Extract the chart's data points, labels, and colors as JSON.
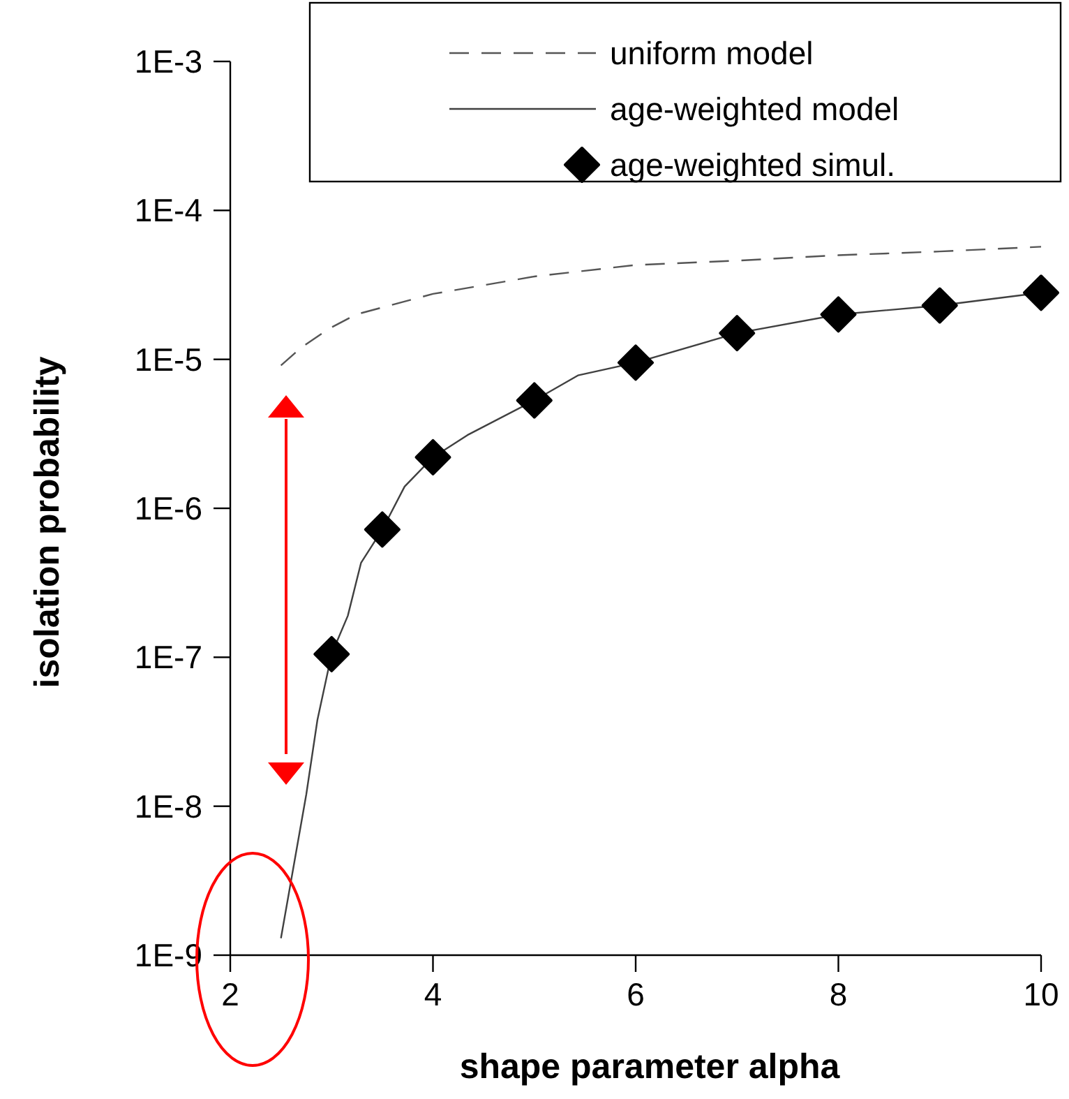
{
  "chart_data": {
    "type": "line",
    "xlabel": "shape parameter alpha",
    "ylabel": "isolation probability",
    "log": "y",
    "legend": "top right",
    "grid": false,
    "xlim": [
      2,
      10
    ],
    "xticks": [
      2,
      4,
      6,
      8,
      10
    ],
    "ylim": [
      1e-09,
      0.001
    ],
    "yticks": [
      {
        "value": 1e-09,
        "label": "1E-9"
      },
      {
        "value": 1e-08,
        "label": "1E-8"
      },
      {
        "value": 1e-07,
        "label": "1E-7"
      },
      {
        "value": 1e-06,
        "label": "1E-6"
      },
      {
        "value": 1e-05,
        "label": "1E-5"
      },
      {
        "value": 0.0001,
        "label": "1E-4"
      },
      {
        "value": 0.001,
        "label": "1E-3"
      }
    ],
    "series": [
      {
        "name": "uniform model",
        "line_style": "dashed",
        "marker": "none",
        "color": "#555555",
        "x": [
          2.5,
          2.7,
          2.97,
          3.24,
          4,
          5,
          6,
          7,
          8,
          9,
          10
        ],
        "values": [
          9.1e-06,
          1.2e-05,
          1.6e-05,
          2e-05,
          2.75e-05,
          3.6e-05,
          4.3e-05,
          4.6e-05,
          5e-05,
          5.3e-05,
          5.7e-05
        ]
      },
      {
        "name": "age-weighted model",
        "line_style": "solid",
        "marker": "none",
        "color": "#404040",
        "x": [
          2.5,
          2.75,
          2.86,
          3,
          3.16,
          3.29,
          3.5,
          3.72,
          4,
          4.34,
          5,
          5.43,
          6,
          7,
          8,
          9,
          10
        ],
        "values": [
          1.3e-09,
          1.2e-08,
          3.8e-08,
          1.05e-07,
          1.9e-07,
          4.3e-07,
          7.2e-07,
          1.4e-06,
          2.2e-06,
          3.1e-06,
          5.3e-06,
          7.8e-06,
          9.5e-06,
          1.5e-05,
          2e-05,
          2.3e-05,
          2.8e-05
        ]
      },
      {
        "name": "age-weighted simul.",
        "type": "scatter",
        "marker": "diamond",
        "color": "#000000",
        "x": [
          3,
          3.5,
          4,
          5,
          6,
          7,
          8,
          9,
          10
        ],
        "values": [
          1.05e-07,
          7.2e-07,
          2.2e-06,
          5.3e-06,
          9.5e-06,
          1.5e-05,
          2e-05,
          2.3e-05,
          2.8e-05
        ]
      }
    ]
  }
}
